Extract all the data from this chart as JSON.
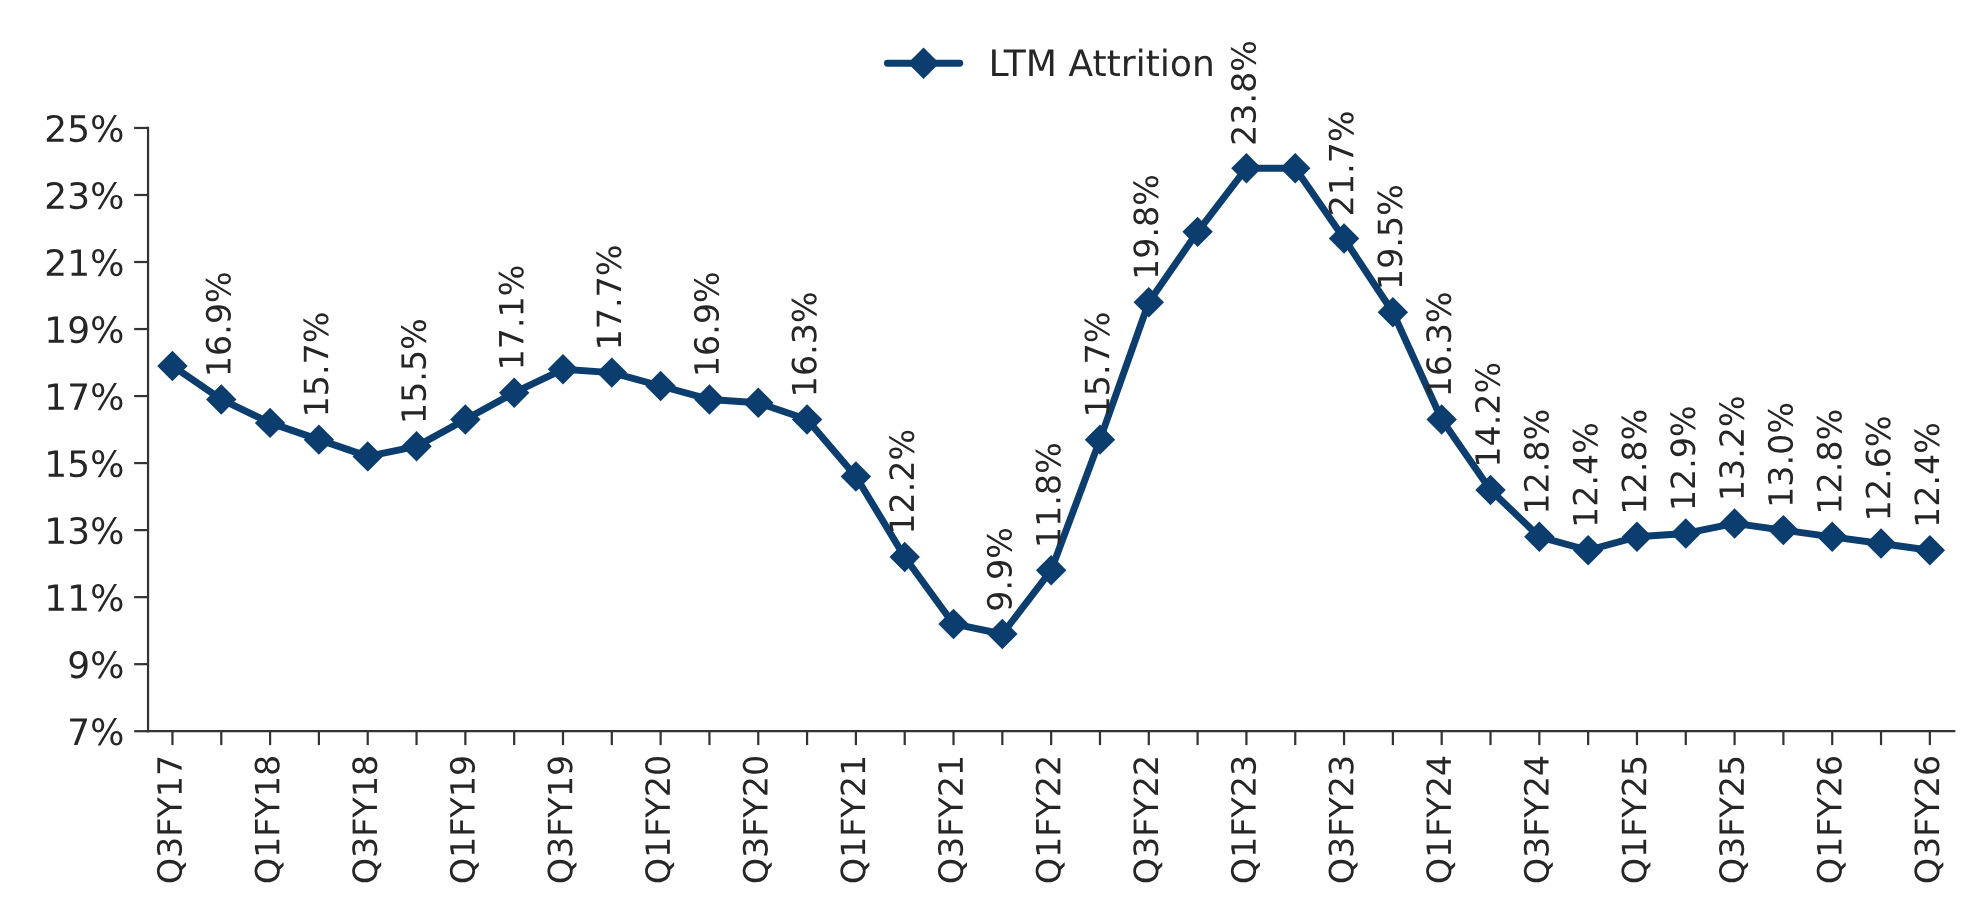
{
  "chart_data": {
    "type": "line",
    "categories": [
      "Q3FY17",
      null,
      "Q1FY18",
      null,
      "Q3FY18",
      null,
      "Q1FY19",
      null,
      "Q3FY19",
      null,
      "Q1FY20",
      null,
      "Q3FY20",
      null,
      "Q1FY21",
      null,
      "Q3FY21",
      null,
      "Q1FY22",
      null,
      "Q3FY22",
      null,
      "Q1FY23",
      null,
      "Q3FY23",
      null,
      "Q1FY24",
      null,
      "Q3FY24",
      null,
      "Q1FY25",
      null,
      "Q3FY25",
      null,
      "Q1FY26",
      null,
      "Q3FY26"
    ],
    "series": [
      {
        "name": "LTM Attrition",
        "color": "#0b3d6e",
        "values": [
          17.9,
          16.9,
          16.2,
          15.7,
          15.2,
          15.5,
          16.3,
          17.1,
          17.8,
          17.7,
          17.3,
          16.9,
          16.8,
          16.3,
          14.6,
          12.2,
          10.2,
          9.9,
          11.8,
          15.7,
          19.8,
          21.9,
          23.8,
          23.8,
          21.7,
          19.5,
          16.3,
          14.2,
          12.8,
          12.4,
          12.8,
          12.9,
          13.2,
          13.0,
          12.8,
          12.6,
          12.4
        ],
        "value_labels": [
          null,
          "16.9%",
          null,
          "15.7%",
          null,
          "15.5%",
          null,
          "17.1%",
          null,
          "17.7%",
          null,
          "16.9%",
          null,
          "16.3%",
          null,
          "12.2%",
          null,
          "9.9%",
          "11.8%",
          "15.7%",
          "19.8%",
          null,
          "23.8%",
          null,
          "21.7%",
          "19.5%",
          "16.3%",
          "14.2%",
          "12.8%",
          "12.4%",
          "12.8%",
          "12.9%",
          "13.2%",
          "13.0%",
          "12.8%",
          "12.6%",
          "12.4%"
        ]
      }
    ],
    "ylim": [
      7,
      25
    ],
    "yticks": [
      {
        "value": 7,
        "label": "7%"
      },
      {
        "value": 9,
        "label": "9%"
      },
      {
        "value": 11,
        "label": "11%"
      },
      {
        "value": 13,
        "label": "13%"
      },
      {
        "value": 15,
        "label": "15%"
      },
      {
        "value": 17,
        "label": "17%"
      },
      {
        "value": 19,
        "label": "19%"
      },
      {
        "value": 21,
        "label": "21%"
      },
      {
        "value": 23,
        "label": "23%"
      },
      {
        "value": 25,
        "label": "25%"
      }
    ],
    "marker": "diamond",
    "line_style": "solid",
    "legend": "top",
    "grid": false
  }
}
